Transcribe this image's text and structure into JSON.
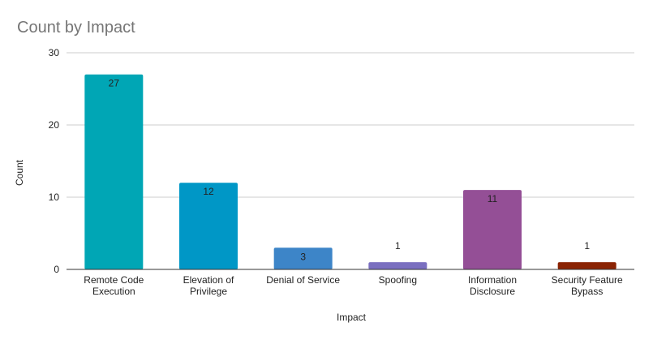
{
  "chart_data": {
    "type": "bar",
    "title": "Count by Impact",
    "xlabel": "Impact",
    "ylabel": "Count",
    "ylim": [
      0,
      30
    ],
    "yticks": [
      0,
      10,
      20,
      30
    ],
    "grid": true,
    "legend": "none",
    "categories": [
      [
        "Remote Code",
        "Execution"
      ],
      [
        "Elevation of",
        "Privilege"
      ],
      [
        "Denial of Service"
      ],
      [
        "Spoofing"
      ],
      [
        "Information",
        "Disclosure"
      ],
      [
        "Security Feature",
        "Bypass"
      ]
    ],
    "values": [
      27,
      12,
      3,
      1,
      11,
      1
    ],
    "colors": [
      "#00a6b5",
      "#0097c6",
      "#3d85c8",
      "#7a6fc0",
      "#944f96",
      "#8b2303"
    ]
  }
}
